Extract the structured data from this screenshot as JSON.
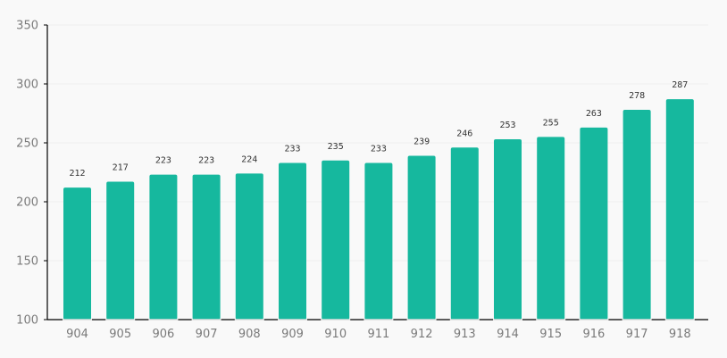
{
  "chart_data": {
    "type": "bar",
    "title": "",
    "xlabel": "",
    "ylabel": "",
    "categories": [
      "904",
      "905",
      "906",
      "907",
      "908",
      "909",
      "910",
      "911",
      "912",
      "913",
      "914",
      "915",
      "916",
      "917",
      "918"
    ],
    "values": [
      212,
      217,
      223,
      223,
      224,
      233,
      235,
      233,
      239,
      246,
      253,
      255,
      263,
      278,
      287
    ],
    "ylim": [
      100,
      350
    ],
    "yticks": [
      100,
      150,
      200,
      250,
      300,
      350
    ],
    "grid": true,
    "bar_color": "#16b89e"
  }
}
